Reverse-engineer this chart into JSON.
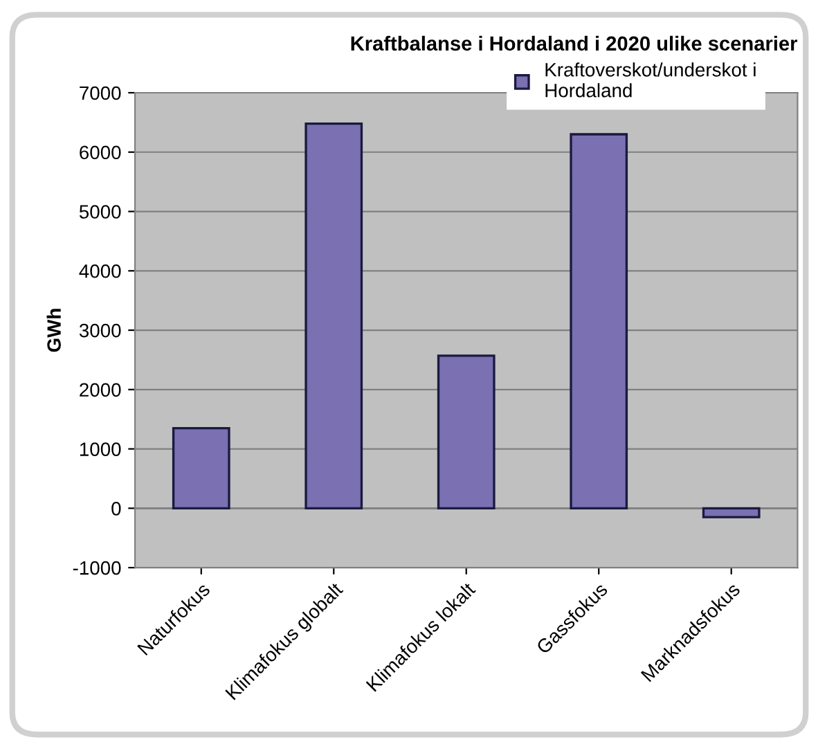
{
  "chart_data": {
    "type": "bar",
    "title": "Kraftbalanse i Hordaland i 2020 ulike scenarier",
    "ylabel": "GWh",
    "categories": [
      "Naturfokus",
      "Klimafokus globalt",
      "Klimafokus lokalt",
      "Gassfokus",
      "Marknadsfokus"
    ],
    "series": [
      {
        "name": "Kraftoverskot/underskot i\nHordaland",
        "color": "#7a70b2",
        "values": [
          1350,
          6480,
          2570,
          6300,
          -150
        ]
      }
    ],
    "ylim": [
      -1000,
      7000
    ],
    "yticks": [
      -1000,
      0,
      1000,
      2000,
      3000,
      4000,
      5000,
      6000,
      7000
    ],
    "grid": "y",
    "legend": "top right"
  }
}
